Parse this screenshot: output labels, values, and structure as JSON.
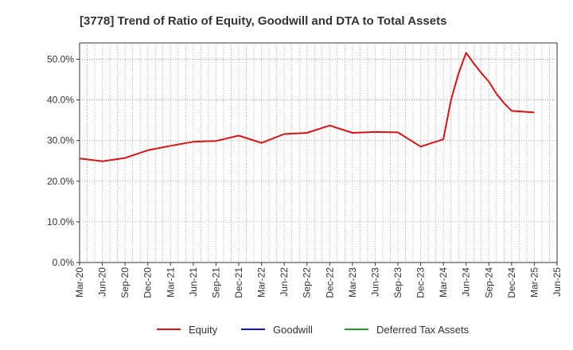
{
  "chart_data": {
    "type": "line",
    "title": "[3778]  Trend of Ratio of Equity, Goodwill and DTA to Total Assets",
    "xlabel": "",
    "ylabel": "",
    "ylim": [
      0,
      54
    ],
    "y_ticks": [
      0,
      10,
      20,
      30,
      40,
      50
    ],
    "y_tick_labels": [
      "0.0%",
      "10.0%",
      "20.0%",
      "30.0%",
      "40.0%",
      "50.0%"
    ],
    "x_tick_labels": [
      "Mar-20",
      "Jun-20",
      "Sep-20",
      "Dec-20",
      "Mar-21",
      "Jun-21",
      "Sep-21",
      "Dec-21",
      "Mar-22",
      "Jun-22",
      "Sep-22",
      "Dec-22",
      "Mar-23",
      "Jun-23",
      "Sep-23",
      "Dec-23",
      "Mar-24",
      "Jun-24",
      "Sep-24",
      "Dec-24",
      "Mar-25",
      "Jun-25"
    ],
    "x_range": [
      0,
      63
    ],
    "grid": true,
    "legend_position": "bottom",
    "series": [
      {
        "name": "Equity",
        "color": "#dd1111",
        "x": [
          0,
          3,
          6,
          9,
          12,
          15,
          18,
          21,
          24,
          27,
          30,
          33,
          36,
          39,
          42,
          45,
          48,
          49,
          50,
          51,
          52,
          53,
          54,
          55,
          56,
          57,
          60
        ],
        "values": [
          25.6,
          24.9,
          25.7,
          27.6,
          28.7,
          29.7,
          29.9,
          31.2,
          29.4,
          31.6,
          31.9,
          33.7,
          31.9,
          32.1,
          32.0,
          28.5,
          30.3,
          40.0,
          46.5,
          51.6,
          49.0,
          46.6,
          44.5,
          41.5,
          39.2,
          37.3,
          36.9
        ]
      },
      {
        "name": "Goodwill",
        "color": "#1111cc",
        "x": [],
        "values": []
      },
      {
        "name": "Deferred Tax Assets",
        "color": "#229922",
        "x": [],
        "values": []
      }
    ]
  }
}
